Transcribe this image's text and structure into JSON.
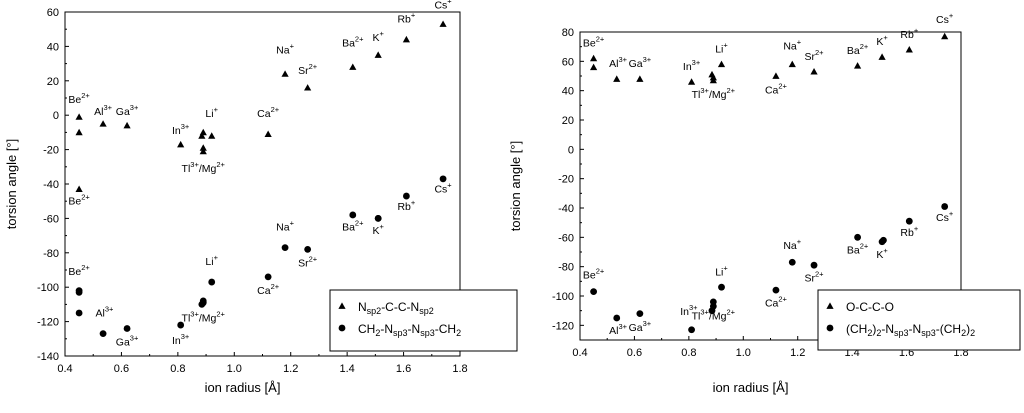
{
  "chart_data": [
    {
      "type": "scatter",
      "xlabel": "ion radius [Å]",
      "ylabel": "torsion angle [°]",
      "xlim": [
        0.4,
        1.8
      ],
      "ylim": [
        -140,
        60
      ],
      "xticks": [
        "0.4",
        "0.6",
        "0.8",
        "1.0",
        "1.2",
        "1.4",
        "1.6",
        "1.8"
      ],
      "yticks": [
        "-140",
        "-120",
        "-100",
        "-80",
        "-60",
        "-40",
        "-20",
        "0",
        "20",
        "40",
        "60"
      ],
      "legend_position": "bottom-right",
      "series": [
        {
          "legend_html": "N<tspan dy=\"3\" font-size=\"9\">sp2</tspan><tspan dy=\"-3\">-C-C-N</tspan><tspan dy=\"3\" font-size=\"9\">sp2</tspan>",
          "marker": "triangle",
          "points": [
            {
              "x": 0.45,
              "y": -1
            },
            {
              "x": 0.45,
              "y": -10
            },
            {
              "x": 0.45,
              "y": -43
            },
            {
              "x": 0.535,
              "y": -5
            },
            {
              "x": 0.62,
              "y": -6
            },
            {
              "x": 0.81,
              "y": -17
            },
            {
              "x": 0.885,
              "y": -12
            },
            {
              "x": 0.89,
              "y": -10
            },
            {
              "x": 0.89,
              "y": -19
            },
            {
              "x": 0.89,
              "y": -21
            },
            {
              "x": 0.92,
              "y": -12
            },
            {
              "x": 1.12,
              "y": -11
            },
            {
              "x": 1.18,
              "y": 24
            },
            {
              "x": 1.26,
              "y": 16
            },
            {
              "x": 1.42,
              "y": 28
            },
            {
              "x": 1.51,
              "y": 35
            },
            {
              "x": 1.61,
              "y": 44
            },
            {
              "x": 1.74,
              "y": 53
            }
          ]
        },
        {
          "legend_html": "CH<tspan dy=\"3\" font-size=\"9\">2</tspan><tspan dy=\"-3\">-N</tspan><tspan dy=\"3\" font-size=\"9\">sp3</tspan><tspan dy=\"-3\">-N</tspan><tspan dy=\"3\" font-size=\"9\">sp3</tspan><tspan dy=\"-3\">-CH</tspan><tspan dy=\"3\" font-size=\"9\">2</tspan>",
          "marker": "circle",
          "points": [
            {
              "x": 0.45,
              "y": -102
            },
            {
              "x": 0.45,
              "y": -103
            },
            {
              "x": 0.45,
              "y": -115
            },
            {
              "x": 0.535,
              "y": -127
            },
            {
              "x": 0.62,
              "y": -124
            },
            {
              "x": 0.81,
              "y": -122
            },
            {
              "x": 0.885,
              "y": -110
            },
            {
              "x": 0.89,
              "y": -108
            },
            {
              "x": 0.89,
              "y": -109
            },
            {
              "x": 0.92,
              "y": -97
            },
            {
              "x": 1.12,
              "y": -94
            },
            {
              "x": 1.18,
              "y": -77
            },
            {
              "x": 1.26,
              "y": -78
            },
            {
              "x": 1.42,
              "y": -58
            },
            {
              "x": 1.51,
              "y": -60
            },
            {
              "x": 1.51,
              "y": -60
            },
            {
              "x": 1.61,
              "y": -47
            },
            {
              "x": 1.74,
              "y": -37
            }
          ]
        }
      ],
      "annotations": [
        {
          "x": 0.45,
          "y": 7,
          "text": "Be",
          "sup": "2+"
        },
        {
          "x": 0.535,
          "y": 0,
          "text": "Al",
          "sup": "3+"
        },
        {
          "x": 0.62,
          "y": 0,
          "text": "Ga",
          "sup": "3+"
        },
        {
          "x": 0.81,
          "y": -11,
          "text": "In",
          "sup": "3+"
        },
        {
          "x": 0.92,
          "y": -1,
          "text": "Li",
          "sup": "+"
        },
        {
          "x": 0.89,
          "y": -33,
          "text": "Tl",
          "sup": "3+",
          "tail": "/Mg",
          "tail_sup": "2+"
        },
        {
          "x": 1.12,
          "y": -1,
          "text": "Ca",
          "sup": "2+"
        },
        {
          "x": 0.45,
          "y": -52,
          "text": "Be",
          "sup": "2+"
        },
        {
          "x": 1.18,
          "y": 36,
          "text": "Na",
          "sup": "+"
        },
        {
          "x": 1.26,
          "y": 24,
          "text": "Sr",
          "sup": "2+"
        },
        {
          "x": 1.42,
          "y": 40,
          "text": "Ba",
          "sup": "2+"
        },
        {
          "x": 1.51,
          "y": 43,
          "text": "K",
          "sup": "+"
        },
        {
          "x": 1.61,
          "y": 54,
          "text": "Rb",
          "sup": "+"
        },
        {
          "x": 1.74,
          "y": 62,
          "text": "Cs",
          "sup": "+"
        },
        {
          "x": 0.45,
          "y": -93,
          "text": "Be",
          "sup": "2+"
        },
        {
          "x": 0.54,
          "y": -117,
          "text": "Al",
          "sup": "3+"
        },
        {
          "x": 0.62,
          "y": -134,
          "text": "Ga",
          "sup": "3+"
        },
        {
          "x": 0.81,
          "y": -133,
          "text": "In",
          "sup": "3+"
        },
        {
          "x": 0.92,
          "y": -87,
          "text": "Li",
          "sup": "+"
        },
        {
          "x": 0.89,
          "y": -120,
          "text": "Tl",
          "sup": "3+",
          "tail": "/Mg",
          "tail_sup": "2+"
        },
        {
          "x": 1.12,
          "y": -104,
          "text": "Ca",
          "sup": "2+"
        },
        {
          "x": 1.18,
          "y": -67,
          "text": "Na",
          "sup": "+"
        },
        {
          "x": 1.26,
          "y": -88,
          "text": "Sr",
          "sup": "2+"
        },
        {
          "x": 1.42,
          "y": -67,
          "text": "Ba",
          "sup": "2+"
        },
        {
          "x": 1.51,
          "y": -69,
          "text": "K",
          "sup": "+"
        },
        {
          "x": 1.61,
          "y": -55,
          "text": "Rb",
          "sup": "+"
        },
        {
          "x": 1.74,
          "y": -45,
          "text": "Cs",
          "sup": "+"
        }
      ]
    },
    {
      "type": "scatter",
      "xlabel": "ion radius [Å]",
      "ylabel": "torsion angle [°]",
      "xlim": [
        0.4,
        1.8
      ],
      "ylim": [
        -130,
        80
      ],
      "xticks": [
        "0.4",
        "0.6",
        "0.8",
        "1.0",
        "1.2",
        "1.4",
        "1.6",
        "1.8"
      ],
      "yticks": [
        "-120",
        "-100",
        "-80",
        "-60",
        "-40",
        "-20",
        "0",
        "20",
        "40",
        "60",
        "80"
      ],
      "legend_position": "bottom-right",
      "series": [
        {
          "legend_html": "O-C-C-O",
          "marker": "triangle",
          "points": [
            {
              "x": 0.45,
              "y": 62
            },
            {
              "x": 0.45,
              "y": 56
            },
            {
              "x": 0.535,
              "y": 48
            },
            {
              "x": 0.62,
              "y": 48
            },
            {
              "x": 0.81,
              "y": 46
            },
            {
              "x": 0.885,
              "y": 51
            },
            {
              "x": 0.89,
              "y": 49
            },
            {
              "x": 0.89,
              "y": 47
            },
            {
              "x": 0.92,
              "y": 58
            },
            {
              "x": 1.12,
              "y": 50
            },
            {
              "x": 1.18,
              "y": 58
            },
            {
              "x": 1.26,
              "y": 53
            },
            {
              "x": 1.42,
              "y": 57
            },
            {
              "x": 1.51,
              "y": 63
            },
            {
              "x": 1.61,
              "y": 68
            },
            {
              "x": 1.74,
              "y": 77
            }
          ]
        },
        {
          "legend_html": "(CH<tspan dy=\"3\" font-size=\"9\">2</tspan><tspan dy=\"-3\">)</tspan><tspan dy=\"3\" font-size=\"9\">2</tspan><tspan dy=\"-3\">-N</tspan><tspan dy=\"3\" font-size=\"9\">sp3</tspan><tspan dy=\"-3\">-N</tspan><tspan dy=\"3\" font-size=\"9\">sp3</tspan><tspan dy=\"-3\">-(CH</tspan><tspan dy=\"3\" font-size=\"9\">2</tspan><tspan dy=\"-3\">)</tspan><tspan dy=\"3\" font-size=\"9\">2</tspan>",
          "marker": "circle",
          "points": [
            {
              "x": 0.45,
              "y": -97
            },
            {
              "x": 0.535,
              "y": -115
            },
            {
              "x": 0.62,
              "y": -112
            },
            {
              "x": 0.81,
              "y": -123
            },
            {
              "x": 0.885,
              "y": -110
            },
            {
              "x": 0.89,
              "y": -107
            },
            {
              "x": 0.89,
              "y": -104
            },
            {
              "x": 0.92,
              "y": -94
            },
            {
              "x": 1.12,
              "y": -96
            },
            {
              "x": 1.18,
              "y": -77
            },
            {
              "x": 1.26,
              "y": -79
            },
            {
              "x": 1.42,
              "y": -60
            },
            {
              "x": 1.51,
              "y": -63
            },
            {
              "x": 1.515,
              "y": -62
            },
            {
              "x": 1.61,
              "y": -49
            },
            {
              "x": 1.74,
              "y": -39
            }
          ]
        }
      ],
      "annotations": [
        {
          "x": 0.45,
          "y": 70,
          "text": "Be",
          "sup": "2+"
        },
        {
          "x": 0.54,
          "y": 56,
          "text": "Al",
          "sup": "3+"
        },
        {
          "x": 0.62,
          "y": 56,
          "text": "Ga",
          "sup": "3+"
        },
        {
          "x": 0.81,
          "y": 54,
          "text": "In",
          "sup": "3+"
        },
        {
          "x": 0.92,
          "y": 66,
          "text": "Li",
          "sup": "+"
        },
        {
          "x": 0.89,
          "y": 35,
          "text": "Tl",
          "sup": "3+",
          "tail": "/Mg",
          "tail_sup": "2+"
        },
        {
          "x": 1.12,
          "y": 38,
          "text": "Ca",
          "sup": "2+"
        },
        {
          "x": 1.18,
          "y": 68,
          "text": "Na",
          "sup": "+"
        },
        {
          "x": 1.26,
          "y": 61,
          "text": "Sr",
          "sup": "2+"
        },
        {
          "x": 1.42,
          "y": 65,
          "text": "Ba",
          "sup": "2+"
        },
        {
          "x": 1.51,
          "y": 71,
          "text": "K",
          "sup": "+"
        },
        {
          "x": 1.61,
          "y": 76,
          "text": "Rb",
          "sup": "+"
        },
        {
          "x": 1.74,
          "y": 86,
          "text": "Cs",
          "sup": "+"
        },
        {
          "x": 0.45,
          "y": -88,
          "text": "Be",
          "sup": "2+"
        },
        {
          "x": 0.54,
          "y": -126,
          "text": "Al",
          "sup": "3+"
        },
        {
          "x": 0.62,
          "y": -124,
          "text": "Ga",
          "sup": "3+"
        },
        {
          "x": 0.8,
          "y": -113,
          "text": "In",
          "sup": "3+"
        },
        {
          "x": 0.92,
          "y": -86,
          "text": "Li",
          "sup": "+"
        },
        {
          "x": 0.89,
          "y": -116,
          "text": "Tl",
          "sup": "3+",
          "tail": "/Mg",
          "tail_sup": "2+"
        },
        {
          "x": 1.12,
          "y": -107,
          "text": "Ca",
          "sup": "2+"
        },
        {
          "x": 1.18,
          "y": -68,
          "text": "Na",
          "sup": "+"
        },
        {
          "x": 1.26,
          "y": -90,
          "text": "Sr",
          "sup": "2+"
        },
        {
          "x": 1.42,
          "y": -71,
          "text": "Ba",
          "sup": "2+"
        },
        {
          "x": 1.51,
          "y": -74,
          "text": "K",
          "sup": "+"
        },
        {
          "x": 1.61,
          "y": -59,
          "text": "Rb",
          "sup": "+"
        },
        {
          "x": 1.74,
          "y": -49,
          "text": "Cs",
          "sup": "+"
        }
      ]
    }
  ]
}
